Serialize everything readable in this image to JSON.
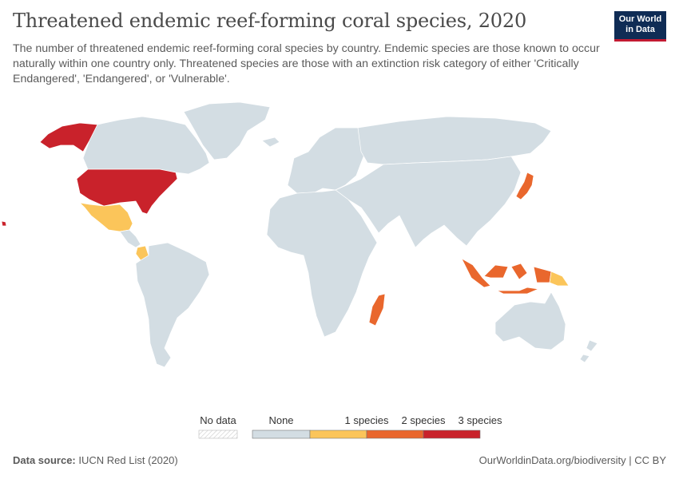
{
  "header": {
    "title": "Threatened endemic reef-forming coral species, 2020",
    "subtitle": "The number of threatened endemic reef-forming coral species by country. Endemic species are those known to occur naturally within one country only. Threatened species are those with an extinction risk category of either 'Critically Endangered', 'Endangered', or 'Vulnerable'."
  },
  "logo": {
    "line1": "Our World",
    "line2": "in Data"
  },
  "colors": {
    "none": "#d3dde3",
    "one": "#fbc55a",
    "two": "#e9672d",
    "three": "#c9222b",
    "border": "#ffffff",
    "nodata": "#eeeeee"
  },
  "legend": {
    "no_data": "No data",
    "none": "None",
    "one": "1 species",
    "two": "2 species",
    "three": "3 species"
  },
  "map_data": {
    "United States": 3,
    "Japan": 2,
    "Indonesia": 2,
    "Madagascar": 2,
    "Mexico": 1,
    "Colombia": 1,
    "Papua New Guinea": 1
  },
  "footer": {
    "source_label": "Data source:",
    "source_value": "IUCN Red List (2020)",
    "url": "OurWorldinData.org/biodiversity | CC BY"
  }
}
